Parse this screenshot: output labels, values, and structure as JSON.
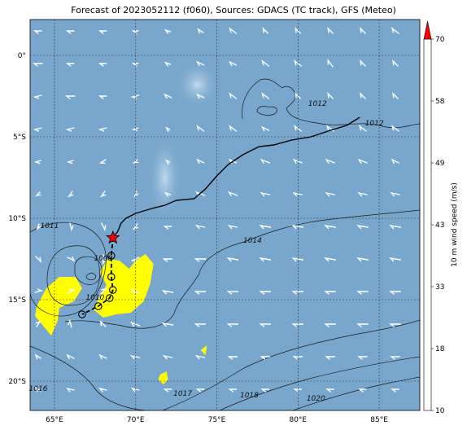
{
  "title": "Forecast of 2023052112 (f060), Sources: GDACS (TC track), GFS (Meteo)",
  "map": {
    "lon_range": [
      63.5,
      87.5
    ],
    "lat_range": [
      -21.8,
      2.2
    ],
    "lon_ticks": [
      {
        "value": 65,
        "label": "65°E"
      },
      {
        "value": 70,
        "label": "70°E"
      },
      {
        "value": 75,
        "label": "75°E"
      },
      {
        "value": 80,
        "label": "80°E"
      },
      {
        "value": 85,
        "label": "85°E"
      }
    ],
    "lat_ticks": [
      {
        "value": 0,
        "label": "0°"
      },
      {
        "value": -5,
        "label": "5°S"
      },
      {
        "value": -10,
        "label": "10°S"
      },
      {
        "value": -15,
        "label": "15°S"
      },
      {
        "value": -20,
        "label": "20°S"
      }
    ],
    "grid": true,
    "ocean_color": "#78a6cc",
    "isobar_labels": [
      {
        "text": "1012",
        "lon": 81.2,
        "lat": -3.1
      },
      {
        "text": "1012",
        "lon": 84.7,
        "lat": -4.3
      },
      {
        "text": "1011",
        "lon": 64.7,
        "lat": -10.6
      },
      {
        "text": "1008",
        "lon": 68.0,
        "lat": -12.6
      },
      {
        "text": "1010",
        "lon": 67.5,
        "lat": -15.0
      },
      {
        "text": "1014",
        "lon": 77.2,
        "lat": -11.5
      },
      {
        "text": "1016",
        "lon": 64.0,
        "lat": -20.6
      },
      {
        "text": "1017",
        "lon": 72.9,
        "lat": -20.9
      },
      {
        "text": "1018",
        "lon": 77.0,
        "lat": -21.0
      },
      {
        "text": "1020",
        "lon": 81.1,
        "lat": -21.2
      }
    ]
  },
  "track": {
    "observed": [
      [
        83.8,
        -3.8
      ],
      [
        83.0,
        -4.3
      ],
      [
        82.0,
        -4.6
      ],
      [
        80.8,
        -5.0
      ],
      [
        79.6,
        -5.2
      ],
      [
        78.5,
        -5.5
      ],
      [
        77.6,
        -5.6
      ],
      [
        76.6,
        -6.1
      ],
      [
        75.7,
        -6.7
      ],
      [
        75.0,
        -7.4
      ],
      [
        74.3,
        -8.2
      ],
      [
        73.6,
        -8.8
      ],
      [
        72.5,
        -8.9
      ],
      [
        71.8,
        -9.2
      ],
      [
        71.0,
        -9.4
      ],
      [
        70.0,
        -9.7
      ],
      [
        69.4,
        -10.0
      ],
      [
        69.1,
        -10.3
      ],
      [
        68.9,
        -10.8
      ],
      [
        68.6,
        -11.2
      ]
    ],
    "current": {
      "lon": 68.6,
      "lat": -11.2
    },
    "forecast_positions": [
      [
        68.5,
        -12.3
      ],
      [
        68.5,
        -13.6
      ],
      [
        68.6,
        -14.4
      ],
      [
        68.4,
        -14.9
      ],
      [
        67.7,
        -15.4
      ],
      [
        66.7,
        -15.9
      ]
    ],
    "track_color": "#000000",
    "current_color": "#ff0000"
  },
  "colorbar": {
    "label": "10 m wind speed (m/s)",
    "ticks": [
      "10",
      "18",
      "33",
      "43",
      "49",
      "58",
      "70"
    ],
    "colors": [
      "#ffff00",
      "#9bd31f",
      "#1ea51e",
      "#008f8f",
      "#1f5577",
      "#1f2c5a"
    ],
    "extend_color": "#ff0000"
  },
  "calm_patches": [
    {
      "lon": 73.8,
      "lat": -1.8,
      "rx": 28,
      "ry": 30
    },
    {
      "lon": 71.8,
      "lat": -7.5,
      "rx": 22,
      "ry": 55
    }
  ],
  "yellow_patches": [
    [
      [
        63.9,
        -15.4
      ],
      [
        64.5,
        -14.3
      ],
      [
        65.3,
        -13.6
      ],
      [
        66.3,
        -13.6
      ],
      [
        66.7,
        -14.3
      ],
      [
        66.2,
        -15.1
      ],
      [
        65.3,
        -15.5
      ],
      [
        65.2,
        -16.3
      ],
      [
        64.8,
        -17.2
      ],
      [
        64.3,
        -16.6
      ],
      [
        63.8,
        -16.0
      ]
    ],
    [
      [
        67.8,
        -13.3
      ],
      [
        68.3,
        -12.5
      ],
      [
        69.0,
        -12.6
      ],
      [
        69.6,
        -13.1
      ],
      [
        70.0,
        -12.6
      ],
      [
        70.6,
        -12.2
      ],
      [
        71.1,
        -12.8
      ],
      [
        70.9,
        -14.0
      ],
      [
        70.5,
        -15.1
      ],
      [
        69.7,
        -15.8
      ],
      [
        68.8,
        -15.9
      ],
      [
        68.0,
        -16.1
      ],
      [
        67.4,
        -15.6
      ],
      [
        67.8,
        -14.8
      ],
      [
        68.2,
        -14.1
      ]
    ],
    [
      [
        71.5,
        -19.6
      ],
      [
        71.9,
        -19.4
      ],
      [
        72.0,
        -19.9
      ],
      [
        71.7,
        -20.2
      ],
      [
        71.4,
        -19.9
      ]
    ],
    [
      [
        74.0,
        -18.1
      ],
      [
        74.4,
        -17.8
      ],
      [
        74.3,
        -18.4
      ]
    ]
  ],
  "wind_arrows": [
    {
      "lon": 64.0,
      "lat": 1.5,
      "u": -4,
      "v": 0
    },
    {
      "lon": 66.0,
      "lat": 1.5,
      "u": -4,
      "v": 0
    },
    {
      "lon": 68.0,
      "lat": 1.5,
      "u": -4,
      "v": 0
    },
    {
      "lon": 70.0,
      "lat": 1.5,
      "u": -3,
      "v": 0
    },
    {
      "lon": 72.0,
      "lat": 1.5,
      "u": -3,
      "v": 1
    },
    {
      "lon": 74.0,
      "lat": 1.5,
      "u": -3,
      "v": 2
    },
    {
      "lon": 76.0,
      "lat": 1.5,
      "u": -4,
      "v": 3
    },
    {
      "lon": 78.0,
      "lat": 1.5,
      "u": -3,
      "v": 3
    },
    {
      "lon": 80.0,
      "lat": 1.5,
      "u": -3,
      "v": 3
    },
    {
      "lon": 82.0,
      "lat": 1.5,
      "u": -3,
      "v": 3
    },
    {
      "lon": 84.0,
      "lat": 1.5,
      "u": -3,
      "v": 3
    },
    {
      "lon": 86.0,
      "lat": 1.5,
      "u": -4,
      "v": 3
    },
    {
      "lon": 64.0,
      "lat": -0.5,
      "u": -5,
      "v": 0
    },
    {
      "lon": 66.0,
      "lat": -0.5,
      "u": -4,
      "v": 0
    },
    {
      "lon": 68.0,
      "lat": -0.5,
      "u": -4,
      "v": 0
    },
    {
      "lon": 70.0,
      "lat": -0.5,
      "u": -3,
      "v": 0
    },
    {
      "lon": 72.0,
      "lat": -0.5,
      "u": -3,
      "v": 1
    },
    {
      "lon": 74.0,
      "lat": -0.5,
      "u": -4,
      "v": 2
    },
    {
      "lon": 76.0,
      "lat": -0.5,
      "u": -4,
      "v": 2
    },
    {
      "lon": 78.0,
      "lat": -0.5,
      "u": -4,
      "v": 3
    },
    {
      "lon": 80.0,
      "lat": -0.5,
      "u": -4,
      "v": 3
    },
    {
      "lon": 82.0,
      "lat": -0.5,
      "u": -3,
      "v": 4
    },
    {
      "lon": 84.0,
      "lat": -0.5,
      "u": -3,
      "v": 3
    },
    {
      "lon": 86.0,
      "lat": -0.5,
      "u": -3,
      "v": 3
    },
    {
      "lon": 64.0,
      "lat": -2.5,
      "u": -4,
      "v": -1
    },
    {
      "lon": 66.0,
      "lat": -2.5,
      "u": -5,
      "v": 0
    },
    {
      "lon": 68.0,
      "lat": -2.5,
      "u": -4,
      "v": 0
    },
    {
      "lon": 70.0,
      "lat": -2.5,
      "u": -4,
      "v": -1
    },
    {
      "lon": 72.0,
      "lat": -2.5,
      "u": -4,
      "v": 2
    },
    {
      "lon": 74.0,
      "lat": -2.5,
      "u": -4,
      "v": 2
    },
    {
      "lon": 76.0,
      "lat": -2.5,
      "u": -4,
      "v": 3
    },
    {
      "lon": 78.0,
      "lat": -2.5,
      "u": -4,
      "v": 3
    },
    {
      "lon": 80.0,
      "lat": -2.5,
      "u": -3,
      "v": 3
    },
    {
      "lon": 82.0,
      "lat": -2.5,
      "u": -3,
      "v": 3
    },
    {
      "lon": 84.0,
      "lat": -2.5,
      "u": -3,
      "v": 3
    },
    {
      "lon": 86.0,
      "lat": -2.5,
      "u": -3,
      "v": 3
    },
    {
      "lon": 64.0,
      "lat": -4.5,
      "u": -4,
      "v": -1
    },
    {
      "lon": 66.0,
      "lat": -4.5,
      "u": -4,
      "v": -1
    },
    {
      "lon": 68.0,
      "lat": -4.5,
      "u": -4,
      "v": -1
    },
    {
      "lon": 70.0,
      "lat": -4.5,
      "u": -3,
      "v": -1
    },
    {
      "lon": 72.0,
      "lat": -4.5,
      "u": -2,
      "v": 1
    },
    {
      "lon": 74.0,
      "lat": -4.5,
      "u": -4,
      "v": 3
    },
    {
      "lon": 76.0,
      "lat": -4.5,
      "u": -4,
      "v": 3
    },
    {
      "lon": 78.0,
      "lat": -4.5,
      "u": -4,
      "v": 2
    },
    {
      "lon": 80.0,
      "lat": -4.5,
      "u": -4,
      "v": 3
    },
    {
      "lon": 82.0,
      "lat": -4.5,
      "u": -4,
      "v": 3
    },
    {
      "lon": 84.0,
      "lat": -4.5,
      "u": -4,
      "v": 3
    },
    {
      "lon": 86.0,
      "lat": -4.5,
      "u": -4,
      "v": 3
    },
    {
      "lon": 64.0,
      "lat": -6.5,
      "u": -3,
      "v": -1
    },
    {
      "lon": 66.0,
      "lat": -6.5,
      "u": -3,
      "v": -1
    },
    {
      "lon": 68.0,
      "lat": -6.5,
      "u": -3,
      "v": -2
    },
    {
      "lon": 70.0,
      "lat": -6.5,
      "u": -2,
      "v": -2
    },
    {
      "lon": 72.0,
      "lat": -6.5,
      "u": -2,
      "v": 1
    },
    {
      "lon": 74.0,
      "lat": -6.5,
      "u": -4,
      "v": 2
    },
    {
      "lon": 76.0,
      "lat": -6.5,
      "u": -4,
      "v": 2
    },
    {
      "lon": 78.0,
      "lat": -6.5,
      "u": -5,
      "v": 2
    },
    {
      "lon": 80.0,
      "lat": -6.5,
      "u": -5,
      "v": 2
    },
    {
      "lon": 82.0,
      "lat": -6.5,
      "u": -5,
      "v": 2
    },
    {
      "lon": 84.0,
      "lat": -6.5,
      "u": -5,
      "v": 2
    },
    {
      "lon": 86.0,
      "lat": -6.5,
      "u": -4,
      "v": 2
    },
    {
      "lon": 64.0,
      "lat": -8.5,
      "u": -2,
      "v": -2
    },
    {
      "lon": 66.0,
      "lat": -8.5,
      "u": -2,
      "v": -3
    },
    {
      "lon": 68.0,
      "lat": -8.5,
      "u": -2,
      "v": -3
    },
    {
      "lon": 70.0,
      "lat": -8.5,
      "u": -1,
      "v": -3
    },
    {
      "lon": 72.0,
      "lat": -8.5,
      "u": -3,
      "v": 1
    },
    {
      "lon": 74.0,
      "lat": -8.5,
      "u": -5,
      "v": 2
    },
    {
      "lon": 76.0,
      "lat": -8.5,
      "u": -5,
      "v": 2
    },
    {
      "lon": 78.0,
      "lat": -8.5,
      "u": -5,
      "v": 1
    },
    {
      "lon": 80.0,
      "lat": -8.5,
      "u": -5,
      "v": 1
    },
    {
      "lon": 82.0,
      "lat": -8.5,
      "u": -5,
      "v": 1
    },
    {
      "lon": 84.0,
      "lat": -8.5,
      "u": -5,
      "v": 1
    },
    {
      "lon": 86.0,
      "lat": -8.5,
      "u": -5,
      "v": 1
    },
    {
      "lon": 64.0,
      "lat": -10.5,
      "u": -1,
      "v": -3
    },
    {
      "lon": 66.0,
      "lat": -10.5,
      "u": 1,
      "v": -4
    },
    {
      "lon": 68.0,
      "lat": -10.5,
      "u": 2,
      "v": -4
    },
    {
      "lon": 70.0,
      "lat": -10.5,
      "u": -2,
      "v": -3
    },
    {
      "lon": 72.0,
      "lat": -10.5,
      "u": -4,
      "v": 0
    },
    {
      "lon": 74.0,
      "lat": -10.5,
      "u": -5,
      "v": 1
    },
    {
      "lon": 76.0,
      "lat": -10.5,
      "u": -5,
      "v": 1
    },
    {
      "lon": 78.0,
      "lat": -10.5,
      "u": -6,
      "v": 1
    },
    {
      "lon": 80.0,
      "lat": -10.5,
      "u": -6,
      "v": 1
    },
    {
      "lon": 82.0,
      "lat": -10.5,
      "u": -6,
      "v": 1
    },
    {
      "lon": 84.0,
      "lat": -10.5,
      "u": -6,
      "v": 1
    },
    {
      "lon": 86.0,
      "lat": -10.5,
      "u": -6,
      "v": 1
    },
    {
      "lon": 64.0,
      "lat": -12.5,
      "u": 3,
      "v": -3
    },
    {
      "lon": 66.0,
      "lat": -12.5,
      "u": 4,
      "v": -2
    },
    {
      "lon": 68.0,
      "lat": -12.5,
      "u": 0,
      "v": -5
    },
    {
      "lon": 70.0,
      "lat": -12.5,
      "u": -4,
      "v": -2
    },
    {
      "lon": 72.0,
      "lat": -12.5,
      "u": -5,
      "v": 0
    },
    {
      "lon": 74.0,
      "lat": -12.5,
      "u": -6,
      "v": 0
    },
    {
      "lon": 76.0,
      "lat": -12.5,
      "u": -6,
      "v": 1
    },
    {
      "lon": 78.0,
      "lat": -12.5,
      "u": -6,
      "v": 1
    },
    {
      "lon": 80.0,
      "lat": -12.5,
      "u": -6,
      "v": 1
    },
    {
      "lon": 82.0,
      "lat": -12.5,
      "u": -6,
      "v": 1
    },
    {
      "lon": 84.0,
      "lat": -12.5,
      "u": -6,
      "v": 1
    },
    {
      "lon": 86.0,
      "lat": -12.5,
      "u": -6,
      "v": 1
    },
    {
      "lon": 64.0,
      "lat": -14.5,
      "u": 4,
      "v": 1
    },
    {
      "lon": 66.0,
      "lat": -14.5,
      "u": 4,
      "v": 2
    },
    {
      "lon": 68.0,
      "lat": -14.5,
      "u": 3,
      "v": 3
    },
    {
      "lon": 70.0,
      "lat": -14.5,
      "u": -4,
      "v": 2
    },
    {
      "lon": 72.0,
      "lat": -14.5,
      "u": -6,
      "v": 1
    },
    {
      "lon": 74.0,
      "lat": -14.5,
      "u": -6,
      "v": 0
    },
    {
      "lon": 76.0,
      "lat": -14.5,
      "u": -6,
      "v": 0
    },
    {
      "lon": 78.0,
      "lat": -14.5,
      "u": -6,
      "v": 0
    },
    {
      "lon": 80.0,
      "lat": -14.5,
      "u": -6,
      "v": 0
    },
    {
      "lon": 82.0,
      "lat": -14.5,
      "u": -6,
      "v": 0
    },
    {
      "lon": 84.0,
      "lat": -14.5,
      "u": -6,
      "v": 0
    },
    {
      "lon": 86.0,
      "lat": -14.5,
      "u": -6,
      "v": 0
    },
    {
      "lon": 64.0,
      "lat": -16.5,
      "u": 2,
      "v": 3
    },
    {
      "lon": 66.0,
      "lat": -16.5,
      "u": -1,
      "v": 4
    },
    {
      "lon": 68.0,
      "lat": -16.5,
      "u": -3,
      "v": 3
    },
    {
      "lon": 70.0,
      "lat": -16.5,
      "u": -5,
      "v": 2
    },
    {
      "lon": 72.0,
      "lat": -16.5,
      "u": -6,
      "v": 1
    },
    {
      "lon": 74.0,
      "lat": -16.5,
      "u": -6,
      "v": 0
    },
    {
      "lon": 76.0,
      "lat": -16.5,
      "u": -6,
      "v": 0
    },
    {
      "lon": 78.0,
      "lat": -16.5,
      "u": -6,
      "v": 0
    },
    {
      "lon": 80.0,
      "lat": -16.5,
      "u": -6,
      "v": 0
    },
    {
      "lon": 82.0,
      "lat": -16.5,
      "u": -6,
      "v": 0
    },
    {
      "lon": 84.0,
      "lat": -16.5,
      "u": -6,
      "v": 0
    },
    {
      "lon": 86.0,
      "lat": -16.5,
      "u": -6,
      "v": 0
    },
    {
      "lon": 64.0,
      "lat": -18.5,
      "u": -3,
      "v": 2
    },
    {
      "lon": 66.0,
      "lat": -18.5,
      "u": -4,
      "v": 2
    },
    {
      "lon": 68.0,
      "lat": -18.5,
      "u": -4,
      "v": 2
    },
    {
      "lon": 70.0,
      "lat": -18.5,
      "u": -5,
      "v": 1
    },
    {
      "lon": 72.0,
      "lat": -18.5,
      "u": -5,
      "v": 1
    },
    {
      "lon": 74.0,
      "lat": -18.5,
      "u": -5,
      "v": 1
    },
    {
      "lon": 76.0,
      "lat": -18.5,
      "u": -5,
      "v": 0
    },
    {
      "lon": 78.0,
      "lat": -18.5,
      "u": -5,
      "v": 0
    },
    {
      "lon": 80.0,
      "lat": -18.5,
      "u": -5,
      "v": 0
    },
    {
      "lon": 82.0,
      "lat": -18.5,
      "u": -5,
      "v": 0
    },
    {
      "lon": 84.0,
      "lat": -18.5,
      "u": -5,
      "v": 0
    },
    {
      "lon": 86.0,
      "lat": -18.5,
      "u": -5,
      "v": 0
    },
    {
      "lon": 64.0,
      "lat": -20.5,
      "u": -3,
      "v": 2
    },
    {
      "lon": 66.0,
      "lat": -20.5,
      "u": -4,
      "v": 1
    },
    {
      "lon": 68.0,
      "lat": -20.5,
      "u": -4,
      "v": 1
    },
    {
      "lon": 70.0,
      "lat": -20.5,
      "u": -4,
      "v": 1
    },
    {
      "lon": 72.0,
      "lat": -20.5,
      "u": -4,
      "v": 0
    },
    {
      "lon": 74.0,
      "lat": -20.5,
      "u": -4,
      "v": 0
    },
    {
      "lon": 76.0,
      "lat": -20.5,
      "u": -4,
      "v": 0
    },
    {
      "lon": 78.0,
      "lat": -20.5,
      "u": -4,
      "v": 0
    },
    {
      "lon": 80.0,
      "lat": -20.5,
      "u": -4,
      "v": 0
    },
    {
      "lon": 82.0,
      "lat": -20.5,
      "u": -4,
      "v": 0
    },
    {
      "lon": 84.0,
      "lat": -20.5,
      "u": -4,
      "v": 0
    },
    {
      "lon": 86.0,
      "lat": -20.5,
      "u": -4,
      "v": 0
    }
  ]
}
